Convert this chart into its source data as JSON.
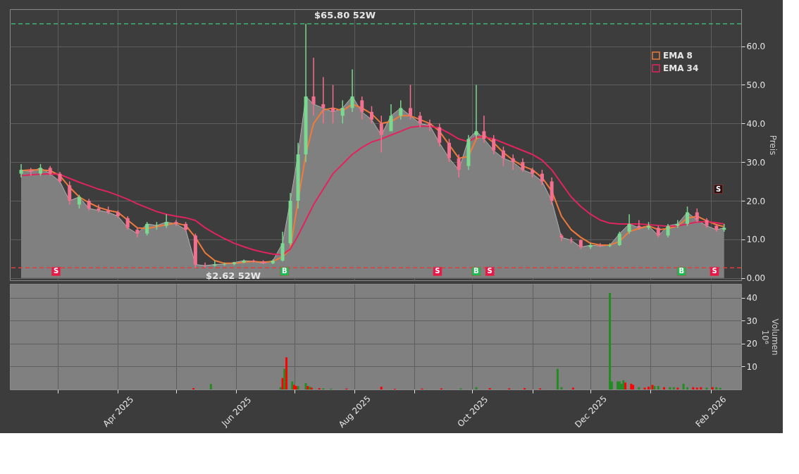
{
  "chart_data": [
    {
      "type": "candlestick",
      "ylabel": "Preis",
      "legend": "top right",
      "grid": true,
      "tick_labels": "y",
      "x": [
        "2025-02-10",
        "2025-02-15",
        "2025-02-20",
        "2025-02-25",
        "2025-03-02",
        "2025-03-07",
        "2025-03-12",
        "2025-03-17",
        "2025-03-22",
        "2025-03-27",
        "2025-04-01",
        "2025-04-06",
        "2025-04-11",
        "2025-04-16",
        "2025-04-21",
        "2025-04-26",
        "2025-05-01",
        "2025-05-06",
        "2025-05-11",
        "2025-05-16",
        "2025-05-21",
        "2025-05-26",
        "2025-05-31",
        "2025-06-05",
        "2025-06-10",
        "2025-06-15",
        "2025-06-20",
        "2025-06-25",
        "2025-06-29",
        "2025-07-03",
        "2025-07-07",
        "2025-07-11",
        "2025-07-16",
        "2025-07-21",
        "2025-07-26",
        "2025-07-31",
        "2025-08-05",
        "2025-08-10",
        "2025-08-15",
        "2025-08-20",
        "2025-08-25",
        "2025-08-30",
        "2025-09-04",
        "2025-09-09",
        "2025-09-14",
        "2025-09-19",
        "2025-09-24",
        "2025-09-29",
        "2025-10-03",
        "2025-10-07",
        "2025-10-12",
        "2025-10-17",
        "2025-10-22",
        "2025-10-27",
        "2025-11-01",
        "2025-11-06",
        "2025-11-11",
        "2025-11-16",
        "2025-11-21",
        "2025-11-26",
        "2025-12-01",
        "2025-12-06",
        "2025-12-11",
        "2025-12-16",
        "2025-12-21",
        "2025-12-26",
        "2025-12-31",
        "2026-01-05",
        "2026-01-10",
        "2026-01-15",
        "2026-01-20",
        "2026-01-25",
        "2026-01-30",
        "2026-02-04",
        "2026-02-08"
      ],
      "ohlc": [
        [
          27,
          29.5,
          26,
          28
        ],
        [
          28,
          28.5,
          26.5,
          27.5
        ],
        [
          27,
          29.5,
          26.5,
          28.5
        ],
        [
          28.5,
          29,
          26.5,
          27
        ],
        [
          27,
          27.5,
          24.5,
          25
        ],
        [
          24,
          25,
          19,
          20
        ],
        [
          19,
          21.5,
          18,
          21
        ],
        [
          20,
          20.5,
          17.5,
          18
        ],
        [
          18,
          19,
          17,
          17.5
        ],
        [
          17.5,
          18.5,
          16.5,
          17
        ],
        [
          17,
          17.5,
          15.5,
          16
        ],
        [
          15.5,
          16,
          12.5,
          13
        ],
        [
          12.5,
          13,
          10.5,
          11.5
        ],
        [
          11.5,
          14.5,
          11,
          14
        ],
        [
          13.5,
          14.5,
          12.5,
          13.6
        ],
        [
          13.5,
          16.5,
          13,
          14.5
        ],
        [
          14.5,
          15,
          13.5,
          14
        ],
        [
          14,
          14.5,
          12,
          12.5
        ],
        [
          11,
          11.5,
          2.62,
          3.5
        ],
        [
          3.3,
          4,
          2.7,
          3.2
        ],
        [
          3.2,
          4.5,
          3,
          3.5
        ],
        [
          3.5,
          4,
          3.2,
          3.6
        ],
        [
          3.6,
          4.2,
          3.3,
          4
        ],
        [
          4,
          4.8,
          3.8,
          4.5
        ],
        [
          4.5,
          4.8,
          4,
          4.3
        ],
        [
          4.3,
          4.6,
          3.6,
          3.8
        ],
        [
          3.8,
          4.8,
          3.6,
          4.5
        ],
        [
          4.5,
          12,
          4.3,
          9
        ],
        [
          9,
          22,
          8.5,
          20
        ],
        [
          20,
          35,
          18,
          32
        ],
        [
          32,
          65.8,
          30,
          47
        ],
        [
          47,
          57,
          42,
          45
        ],
        [
          45,
          52,
          40,
          44
        ],
        [
          44,
          50,
          40,
          43
        ],
        [
          42,
          46,
          40,
          44
        ],
        [
          44,
          54,
          43,
          47
        ],
        [
          46,
          47,
          41,
          43
        ],
        [
          43,
          44.5,
          40,
          41
        ],
        [
          40,
          42,
          32.5,
          37
        ],
        [
          38,
          45,
          38,
          42
        ],
        [
          42,
          46,
          41,
          44
        ],
        [
          44,
          50,
          41,
          42
        ],
        [
          42,
          43,
          39,
          40
        ],
        [
          40,
          41,
          38,
          39.5
        ],
        [
          39,
          40,
          34,
          35
        ],
        [
          35,
          36,
          30,
          31
        ],
        [
          31,
          32,
          26,
          28
        ],
        [
          29,
          37,
          28,
          36
        ],
        [
          37,
          50,
          36,
          38
        ],
        [
          38,
          42,
          35,
          36
        ],
        [
          36,
          37,
          32,
          33
        ],
        [
          33,
          34,
          29,
          31
        ],
        [
          31,
          32,
          28,
          30
        ],
        [
          30,
          31,
          27.5,
          28
        ],
        [
          28,
          28.5,
          26,
          27
        ],
        [
          27,
          28,
          24,
          25
        ],
        [
          25,
          26,
          19,
          20
        ],
        [
          11,
          11.5,
          9.5,
          10.5
        ],
        [
          10,
          10.5,
          9,
          9.8
        ],
        [
          9.8,
          10,
          7.5,
          8
        ],
        [
          8,
          9,
          7.5,
          8.5
        ],
        [
          8.5,
          9,
          8,
          8.3
        ],
        [
          8.3,
          9,
          8,
          8.5
        ],
        [
          8.5,
          12,
          8.3,
          11.5
        ],
        [
          12,
          16.5,
          11.5,
          14
        ],
        [
          13.5,
          15,
          12.5,
          13
        ],
        [
          13,
          14.5,
          12.5,
          13.5
        ],
        [
          13,
          13.5,
          10.5,
          11
        ],
        [
          11,
          14,
          10.5,
          13.5
        ],
        [
          13.5,
          15,
          13,
          14
        ],
        [
          14,
          18.5,
          13.5,
          17
        ],
        [
          17,
          18,
          14.5,
          15
        ],
        [
          15,
          15.5,
          13,
          13.5
        ],
        [
          13.5,
          14,
          12,
          12.5
        ],
        [
          12.5,
          14,
          12,
          13
        ]
      ],
      "colors": [
        "#7bd88f",
        "#f2708f",
        "#7bd88f",
        "#f2708f",
        "#f2708f",
        "#f2708f",
        "#7bd88f",
        "#f2708f",
        "#f2708f",
        "#f2708f",
        "#f2708f",
        "#f2708f",
        "#f2708f",
        "#7bd88f",
        "#7bd88f",
        "#7bd88f",
        "#f2708f",
        "#f2708f",
        "#f2708f",
        "#f2708f",
        "#7bd88f",
        "#7bd88f",
        "#7bd88f",
        "#7bd88f",
        "#f2708f",
        "#f2708f",
        "#7bd88f",
        "#7bd88f",
        "#7bd88f",
        "#7bd88f",
        "#7bd88f",
        "#f2708f",
        "#f2708f",
        "#f2708f",
        "#7bd88f",
        "#7bd88f",
        "#f2708f",
        "#f2708f",
        "#f2708f",
        "#7bd88f",
        "#7bd88f",
        "#f2708f",
        "#f2708f",
        "#f2708f",
        "#f2708f",
        "#f2708f",
        "#f2708f",
        "#7bd88f",
        "#7bd88f",
        "#f2708f",
        "#f2708f",
        "#f2708f",
        "#f2708f",
        "#f2708f",
        "#f2708f",
        "#f2708f",
        "#f2708f",
        "#f2708f",
        "#f2708f",
        "#f2708f",
        "#7bd88f",
        "#f2708f",
        "#7bd88f",
        "#7bd88f",
        "#7bd88f",
        "#f2708f",
        "#7bd88f",
        "#f2708f",
        "#7bd88f",
        "#7bd88f",
        "#7bd88f",
        "#f2708f",
        "#f2708f",
        "#f2708f",
        "#7bd88f"
      ],
      "series": [
        {
          "type": "area",
          "color": "#808080",
          "values": [
            28,
            27.5,
            28.5,
            27,
            25,
            20,
            21,
            18,
            17.5,
            17,
            16,
            13,
            11.5,
            14,
            13.6,
            14.5,
            14,
            12.5,
            3.5,
            3.2,
            3.5,
            3.6,
            4,
            4.5,
            4.3,
            3.8,
            4.5,
            9,
            20,
            32,
            47,
            45,
            44,
            43,
            44,
            47,
            43,
            41,
            37,
            42,
            44,
            42,
            40,
            39.5,
            35,
            31,
            28,
            36,
            38,
            36,
            33,
            31,
            30,
            28,
            27,
            25,
            20,
            10.5,
            9.8,
            8,
            8.5,
            8.3,
            8.5,
            11.5,
            14,
            13,
            13.5,
            11,
            13.5,
            14,
            17,
            15,
            13.5,
            12.5,
            13
          ]
        },
        {
          "name": "EMA 8",
          "type": "line",
          "color": "#f07a3a",
          "values": [
            27.8,
            28,
            28,
            27.8,
            26.5,
            23.5,
            21,
            19.5,
            18.3,
            17.5,
            17,
            15,
            13,
            12.8,
            13.3,
            13.8,
            14.2,
            13.6,
            10.5,
            6.5,
            4.5,
            3.8,
            3.8,
            4.1,
            4.3,
            4.1,
            4.3,
            5.5,
            7.5,
            20,
            32,
            40,
            43.5,
            44,
            43.3,
            45,
            44,
            42.5,
            40,
            40.5,
            42,
            42,
            41,
            40,
            38,
            34.5,
            31,
            31.5,
            36,
            37,
            35,
            32.5,
            30.5,
            29,
            28,
            26,
            22.5,
            16,
            12.5,
            10.5,
            9,
            8.5,
            8.5,
            9.5,
            12,
            12.8,
            13.5,
            12.5,
            12.8,
            13.5,
            15.5,
            16,
            14.8,
            13.8,
            13.3
          ]
        },
        {
          "type": "scatter",
          "marker": "square",
          "x": [
            "2025-02-28",
            "2025-06-26",
            "2025-09-13",
            "2025-10-03",
            "2025-10-10",
            "2026-01-17",
            "2026-02-03",
            "2026-02-05"
          ],
          "values": [
            1.7,
            1.7,
            1.7,
            1.7,
            1.7,
            1.7,
            1.7,
            23
          ],
          "colors": [
            "#e8174a",
            "#1db954",
            "#e8174a",
            "#1db954",
            "#e8174a",
            "#1db954",
            "#e8174a",
            "#2a1212"
          ],
          "value_labels": [
            "S",
            "B",
            "S",
            "B",
            "S",
            "B",
            "S",
            "S"
          ]
        },
        {
          "name": "EMA 34",
          "type": "line",
          "color": "#e0245e",
          "values": [
            26.5,
            26.7,
            26.9,
            27,
            26.8,
            25.8,
            24.8,
            23.9,
            23,
            22.3,
            21.4,
            20.4,
            19.2,
            18.2,
            17.2,
            16.5,
            16,
            15.6,
            14.9,
            13,
            11.5,
            10.2,
            9,
            8.1,
            7.3,
            6.7,
            6.2,
            6,
            7.5,
            11,
            15,
            19,
            23,
            27,
            29.5,
            32,
            33.8,
            35.2,
            36,
            37,
            38,
            39,
            39.3,
            39.3,
            38.8,
            37.5,
            36,
            35.3,
            36.5,
            36.5,
            36,
            35,
            34,
            33,
            32,
            30.5,
            28,
            24.5,
            21,
            18.5,
            16.5,
            15,
            14.2,
            14,
            14,
            14,
            13.8,
            13.6,
            13.4,
            13.5,
            14,
            14.5,
            14.6,
            14.3,
            14
          ]
        }
      ],
      "xlim": [
        "2025-02-06",
        "2026-02-15"
      ],
      "xticks": [
        {
          "value": "2025-03-01",
          "label": null
        },
        {
          "value": "2025-04-01",
          "label": null
        },
        {
          "value": "2025-05-01",
          "label": null
        },
        {
          "value": "2025-06-01",
          "label": null
        },
        {
          "value": "2025-07-01",
          "label": null
        },
        {
          "value": "2025-08-01",
          "label": null
        },
        {
          "value": "2025-09-01",
          "label": null
        },
        {
          "value": "2025-10-01",
          "label": null
        },
        {
          "value": "2025-11-01",
          "label": null
        },
        {
          "value": "2025-12-01",
          "label": null
        },
        {
          "value": "2026-01-01",
          "label": null
        },
        {
          "value": "2026-02-01",
          "label": null
        }
      ],
      "ylim": [
        -0.6,
        69.6
      ],
      "yticks": [
        {
          "value": 0,
          "label": "0.00"
        },
        {
          "value": 10,
          "label": "10.0"
        },
        {
          "value": 20,
          "label": "20.0"
        },
        {
          "value": 30,
          "label": "30.0"
        },
        {
          "value": 40,
          "label": "40.0"
        },
        {
          "value": 50,
          "label": "50.0"
        },
        {
          "value": 60,
          "label": "60.0"
        }
      ],
      "ref_lines": [
        {
          "axis": "y",
          "value": 65.8,
          "color": "#3cb371",
          "line_style": "dashed"
        },
        {
          "axis": "y",
          "value": 2.62,
          "color": "#e03c3c",
          "line_style": "dashed"
        }
      ],
      "annotations": [
        {
          "text": "$65.80 52W",
          "x": "2025-07-07",
          "y": 65.8
        },
        {
          "text": "$2.62 52W",
          "x": "2025-05-12",
          "y": 2.62
        }
      ]
    },
    {
      "type": "bar",
      "ylabel": "Volumen\n10⁶",
      "grid": true,
      "x": [
        "2025-05-10",
        "2025-05-19",
        "2025-06-24",
        "2025-06-25",
        "2025-06-26",
        "2025-06-27",
        "2025-06-30",
        "2025-07-01",
        "2025-07-02",
        "2025-07-03",
        "2025-07-07",
        "2025-07-08",
        "2025-07-09",
        "2025-07-10",
        "2025-07-14",
        "2025-07-16",
        "2025-07-20",
        "2025-07-28",
        "2025-08-15",
        "2025-08-22",
        "2025-09-05",
        "2025-09-15",
        "2025-09-25",
        "2025-10-03",
        "2025-10-10",
        "2025-10-20",
        "2025-10-28",
        "2025-11-05",
        "2025-11-14",
        "2025-11-16",
        "2025-11-22",
        "2025-12-11",
        "2025-12-12",
        "2025-12-15",
        "2025-12-16",
        "2025-12-17",
        "2025-12-18",
        "2025-12-19",
        "2025-12-22",
        "2025-12-23",
        "2025-12-26",
        "2025-12-29",
        "2025-12-31",
        "2026-01-02",
        "2026-01-03",
        "2026-01-05",
        "2026-01-08",
        "2026-01-11",
        "2026-01-13",
        "2026-01-15",
        "2026-01-18",
        "2026-01-20",
        "2026-01-23",
        "2026-01-25",
        "2026-01-27",
        "2026-01-30",
        "2026-02-02",
        "2026-02-04",
        "2026-02-06"
      ],
      "values": [
        0.6,
        2.4,
        1,
        5,
        9,
        14,
        3.5,
        2,
        1.5,
        1.5,
        2.8,
        1.5,
        1.2,
        0.8,
        0.6,
        0.5,
        0.4,
        0.4,
        1.2,
        0.3,
        0.4,
        0.5,
        0.5,
        1,
        0.6,
        0.5,
        0.6,
        0.5,
        9,
        1,
        0.8,
        42,
        3.5,
        3.5,
        3.5,
        2.5,
        4,
        3,
        2.5,
        2,
        1,
        0.8,
        1.2,
        2,
        1.5,
        1.5,
        1,
        1,
        1,
        0.8,
        2.5,
        1,
        1,
        0.8,
        1,
        0.8,
        1,
        1,
        0.7
      ],
      "colors": [
        "#ff0000",
        "#228b22",
        "#228b22",
        "#ff0000",
        "#228b22",
        "#ff0000",
        "#228b22",
        "#ff0000",
        "#ff0000",
        "#228b22",
        "#228b22",
        "#ff0000",
        "#228b22",
        "#ff0000",
        "#ff0000",
        "#228b22",
        "#228b22",
        "#ff0000",
        "#ff0000",
        "#ff0000",
        "#ff0000",
        "#ff0000",
        "#228b22",
        "#228b22",
        "#ff0000",
        "#ff0000",
        "#ff0000",
        "#ff0000",
        "#228b22",
        "#228b22",
        "#ff0000",
        "#228b22",
        "#228b22",
        "#228b22",
        "#228b22",
        "#228b22",
        "#228b22",
        "#ff0000",
        "#ff0000",
        "#ff0000",
        "#228b22",
        "#ff0000",
        "#ff0000",
        "#ff0000",
        "#228b22",
        "#228b22",
        "#ff0000",
        "#228b22",
        "#228b22",
        "#ff0000",
        "#228b22",
        "#228b22",
        "#ff0000",
        "#ff0000",
        "#ff0000",
        "#228b22",
        "#ff0000",
        "#228b22",
        "#228b22"
      ],
      "xlim": [
        "2025-02-06",
        "2026-02-15"
      ],
      "xticks": [
        {
          "value": "2025-03-01",
          "label": null
        },
        {
          "value": "2025-04-01",
          "label": "Apr 2025"
        },
        {
          "value": "2025-05-01",
          "label": null
        },
        {
          "value": "2025-06-01",
          "label": "Jun 2025"
        },
        {
          "value": "2025-07-01",
          "label": null
        },
        {
          "value": "2025-08-01",
          "label": "Aug 2025"
        },
        {
          "value": "2025-09-01",
          "label": null
        },
        {
          "value": "2025-10-01",
          "label": "Oct 2025"
        },
        {
          "value": "2025-11-01",
          "label": null
        },
        {
          "value": "2025-12-01",
          "label": "Dec 2025"
        },
        {
          "value": "2026-01-01",
          "label": null
        },
        {
          "value": "2026-02-01",
          "label": "Feb 2026"
        }
      ],
      "ylim": [
        0,
        46
      ],
      "yticks": [
        10,
        20,
        30,
        40
      ]
    }
  ]
}
